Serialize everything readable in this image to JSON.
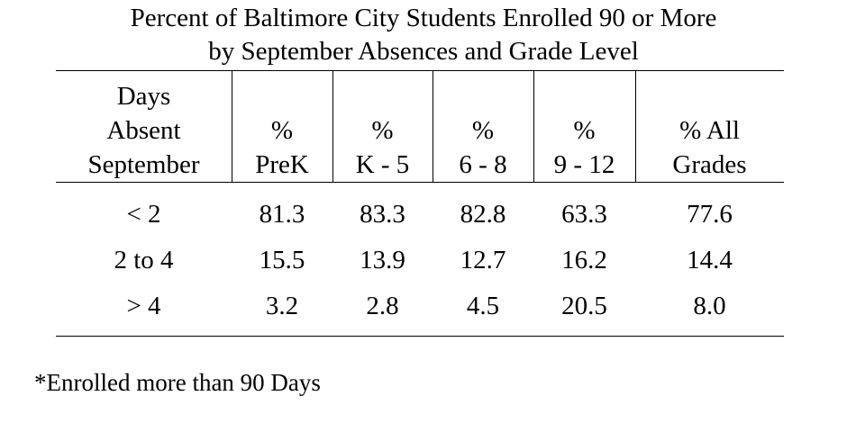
{
  "title": {
    "line1": "Percent of Baltimore City Students Enrolled 90 or More",
    "line2": "by September Absences and Grade Level"
  },
  "table": {
    "headers": [
      {
        "lines": [
          "Days",
          "Absent",
          "September"
        ]
      },
      {
        "lines": [
          "%",
          "PreK"
        ]
      },
      {
        "lines": [
          "%",
          "K - 5"
        ]
      },
      {
        "lines": [
          "%",
          "6 - 8"
        ]
      },
      {
        "lines": [
          "%",
          "9 - 12"
        ]
      },
      {
        "lines": [
          "% All",
          "Grades"
        ]
      }
    ],
    "rows": [
      {
        "label": "< 2",
        "values": [
          "81.3",
          "83.3",
          "82.8",
          "63.3",
          "77.6"
        ]
      },
      {
        "label": "2 to 4",
        "values": [
          "15.5",
          "13.9",
          "12.7",
          "16.2",
          "14.4"
        ]
      },
      {
        "label": "> 4",
        "values": [
          "3.2",
          "2.8",
          "4.5",
          "20.5",
          "8.0"
        ]
      }
    ]
  },
  "footnote": "*Enrolled more than 90 Days"
}
